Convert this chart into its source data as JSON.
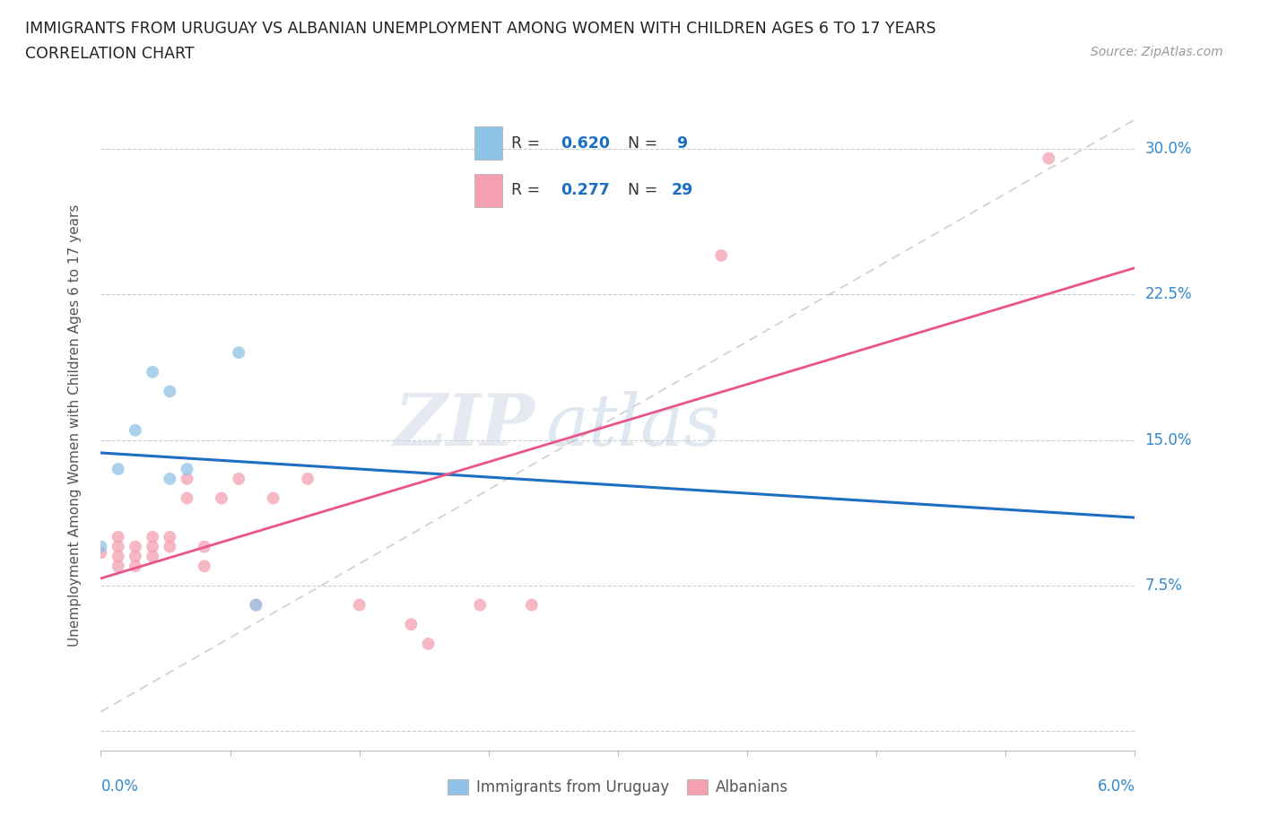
{
  "title_line1": "IMMIGRANTS FROM URUGUAY VS ALBANIAN UNEMPLOYMENT AMONG WOMEN WITH CHILDREN AGES 6 TO 17 YEARS",
  "title_line2": "CORRELATION CHART",
  "source": "Source: ZipAtlas.com",
  "ylabel": "Unemployment Among Women with Children Ages 6 to 17 years",
  "ytick_positions": [
    0.0,
    0.075,
    0.15,
    0.225,
    0.3
  ],
  "ytick_labels": [
    "",
    "7.5%",
    "15.0%",
    "22.5%",
    "30.0%"
  ],
  "xlim": [
    0.0,
    0.06
  ],
  "ylim": [
    -0.01,
    0.325
  ],
  "watermark_text": "ZIPatlas",
  "uruguay_scatter": [
    [
      0.0,
      0.095
    ],
    [
      0.001,
      0.135
    ],
    [
      0.002,
      0.155
    ],
    [
      0.003,
      0.185
    ],
    [
      0.004,
      0.175
    ],
    [
      0.004,
      0.13
    ],
    [
      0.005,
      0.135
    ],
    [
      0.008,
      0.195
    ],
    [
      0.009,
      0.065
    ]
  ],
  "albania_scatter": [
    [
      0.0,
      0.092
    ],
    [
      0.001,
      0.09
    ],
    [
      0.001,
      0.085
    ],
    [
      0.001,
      0.095
    ],
    [
      0.001,
      0.1
    ],
    [
      0.002,
      0.095
    ],
    [
      0.002,
      0.09
    ],
    [
      0.002,
      0.085
    ],
    [
      0.003,
      0.09
    ],
    [
      0.003,
      0.095
    ],
    [
      0.003,
      0.1
    ],
    [
      0.004,
      0.095
    ],
    [
      0.004,
      0.1
    ],
    [
      0.005,
      0.12
    ],
    [
      0.005,
      0.13
    ],
    [
      0.006,
      0.095
    ],
    [
      0.006,
      0.085
    ],
    [
      0.007,
      0.12
    ],
    [
      0.008,
      0.13
    ],
    [
      0.009,
      0.065
    ],
    [
      0.01,
      0.12
    ],
    [
      0.012,
      0.13
    ],
    [
      0.015,
      0.065
    ],
    [
      0.018,
      0.055
    ],
    [
      0.019,
      0.045
    ],
    [
      0.022,
      0.065
    ],
    [
      0.025,
      0.065
    ],
    [
      0.036,
      0.245
    ],
    [
      0.055,
      0.295
    ]
  ],
  "uruguay_color": "#8fc4e8",
  "albania_color": "#f4a0b0",
  "uruguay_trendline_color": "#1e6fc4",
  "albania_trendline_color": "#e8558a",
  "diagonal_color": "#bbbbbb",
  "background_color": "#ffffff",
  "grid_color": "#cccccc",
  "title_color": "#222222",
  "marker_size": 100,
  "legend_r1": "R = 0.620",
  "legend_n1": "N =  9",
  "legend_r2": "R = 0.277",
  "legend_n2": "N = 29"
}
